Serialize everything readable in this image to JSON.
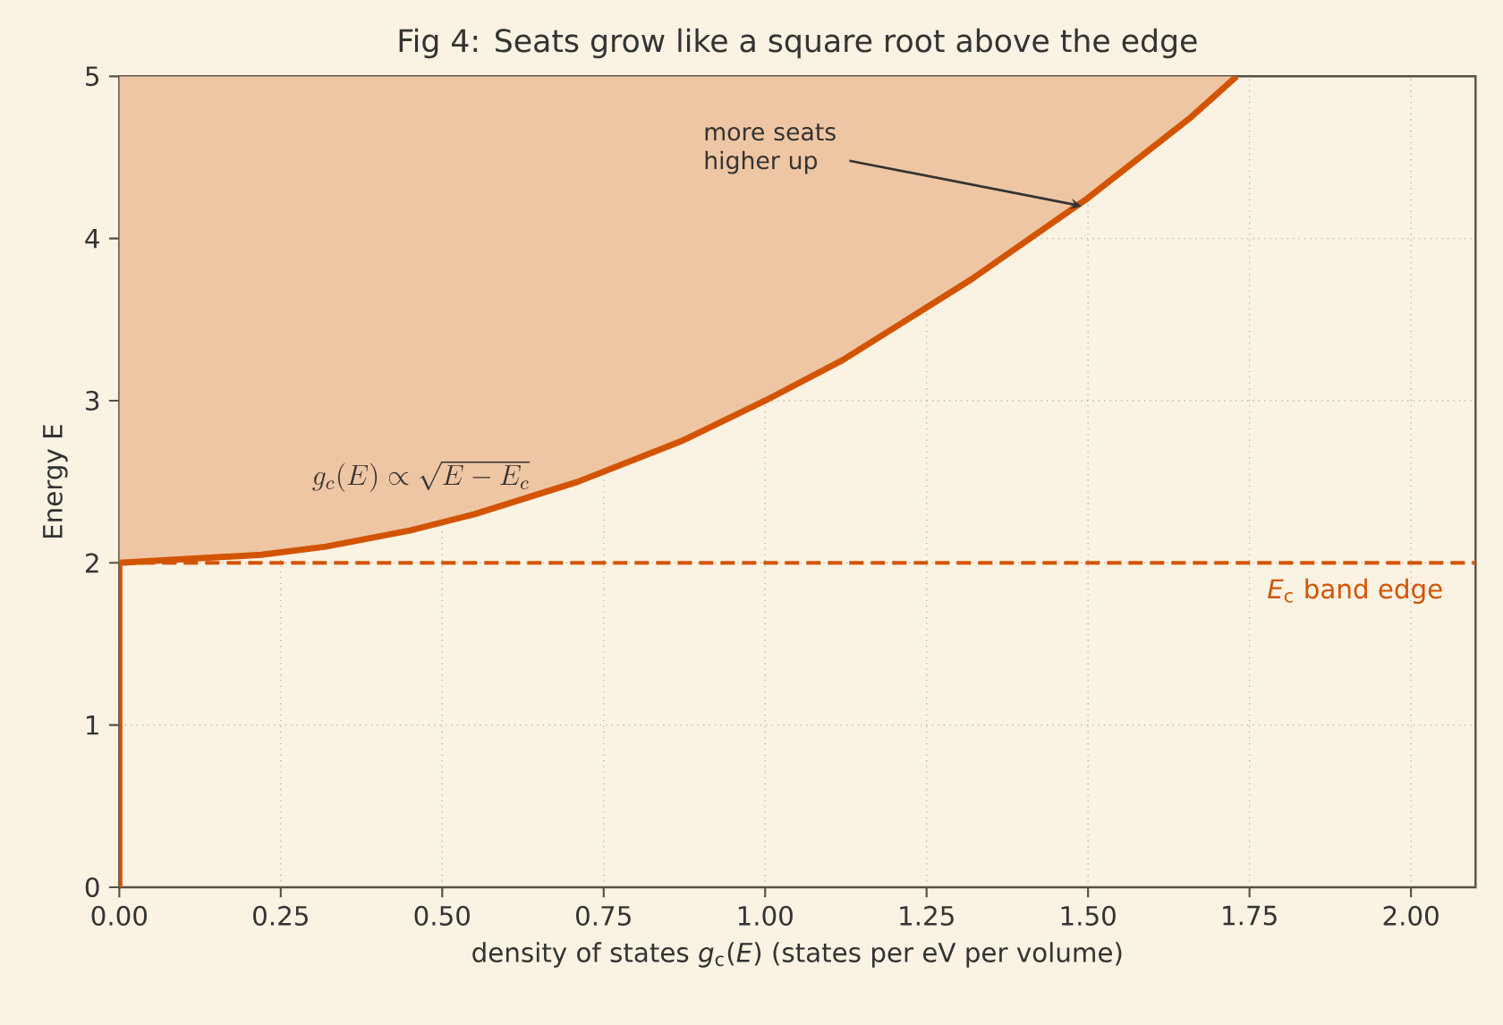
{
  "chart_data": {
    "type": "area",
    "orientation": "horizontal",
    "title": "Fig 4: Seats grow like a square root above the edge",
    "xlabel": "density of states  *g*$_{c}$(*E*)  (states per eV per volume)",
    "ylabel": "Energy E",
    "series": [
      {
        "color": "#d35400",
        "x": [
          0,
          2,
          2.05,
          2.1,
          2.2,
          2.3,
          2.5,
          2.75,
          3,
          3.25,
          3.5,
          3.75,
          4,
          4.25,
          4.5,
          4.75,
          5
        ],
        "values": [
          0,
          0,
          0.22,
          0.32,
          0.45,
          0.55,
          0.71,
          0.87,
          1.0,
          1.12,
          1.22,
          1.32,
          1.41,
          1.5,
          1.58,
          1.66,
          1.73
        ]
      }
    ],
    "xlim": [
      0,
      2.1
    ],
    "ylim": [
      0,
      5
    ],
    "xticks": [
      {
        "value": 0,
        "label": "0.00"
      },
      0.25,
      {
        "value": 0.5,
        "label": "0.50"
      },
      0.75,
      {
        "value": 1,
        "label": "1.00"
      },
      1.25,
      {
        "value": 1.5,
        "label": "1.50"
      },
      1.75,
      {
        "value": 2,
        "label": "2.00"
      }
    ],
    "yticks": [
      0,
      1,
      2,
      3,
      4,
      5
    ],
    "grid": true,
    "ref_lines": [
      {
        "axis": "y",
        "value": 2,
        "label": "*E*$_{c}$  band edge",
        "color": "#d35400",
        "line_style": "dashed"
      }
    ],
    "annotations": [
      {
        "text": "more seats higher up",
        "x": 1.49,
        "y": 4.2
      },
      "g_c(E) \\propto \\sqrt{E - E_c}"
    ]
  }
}
